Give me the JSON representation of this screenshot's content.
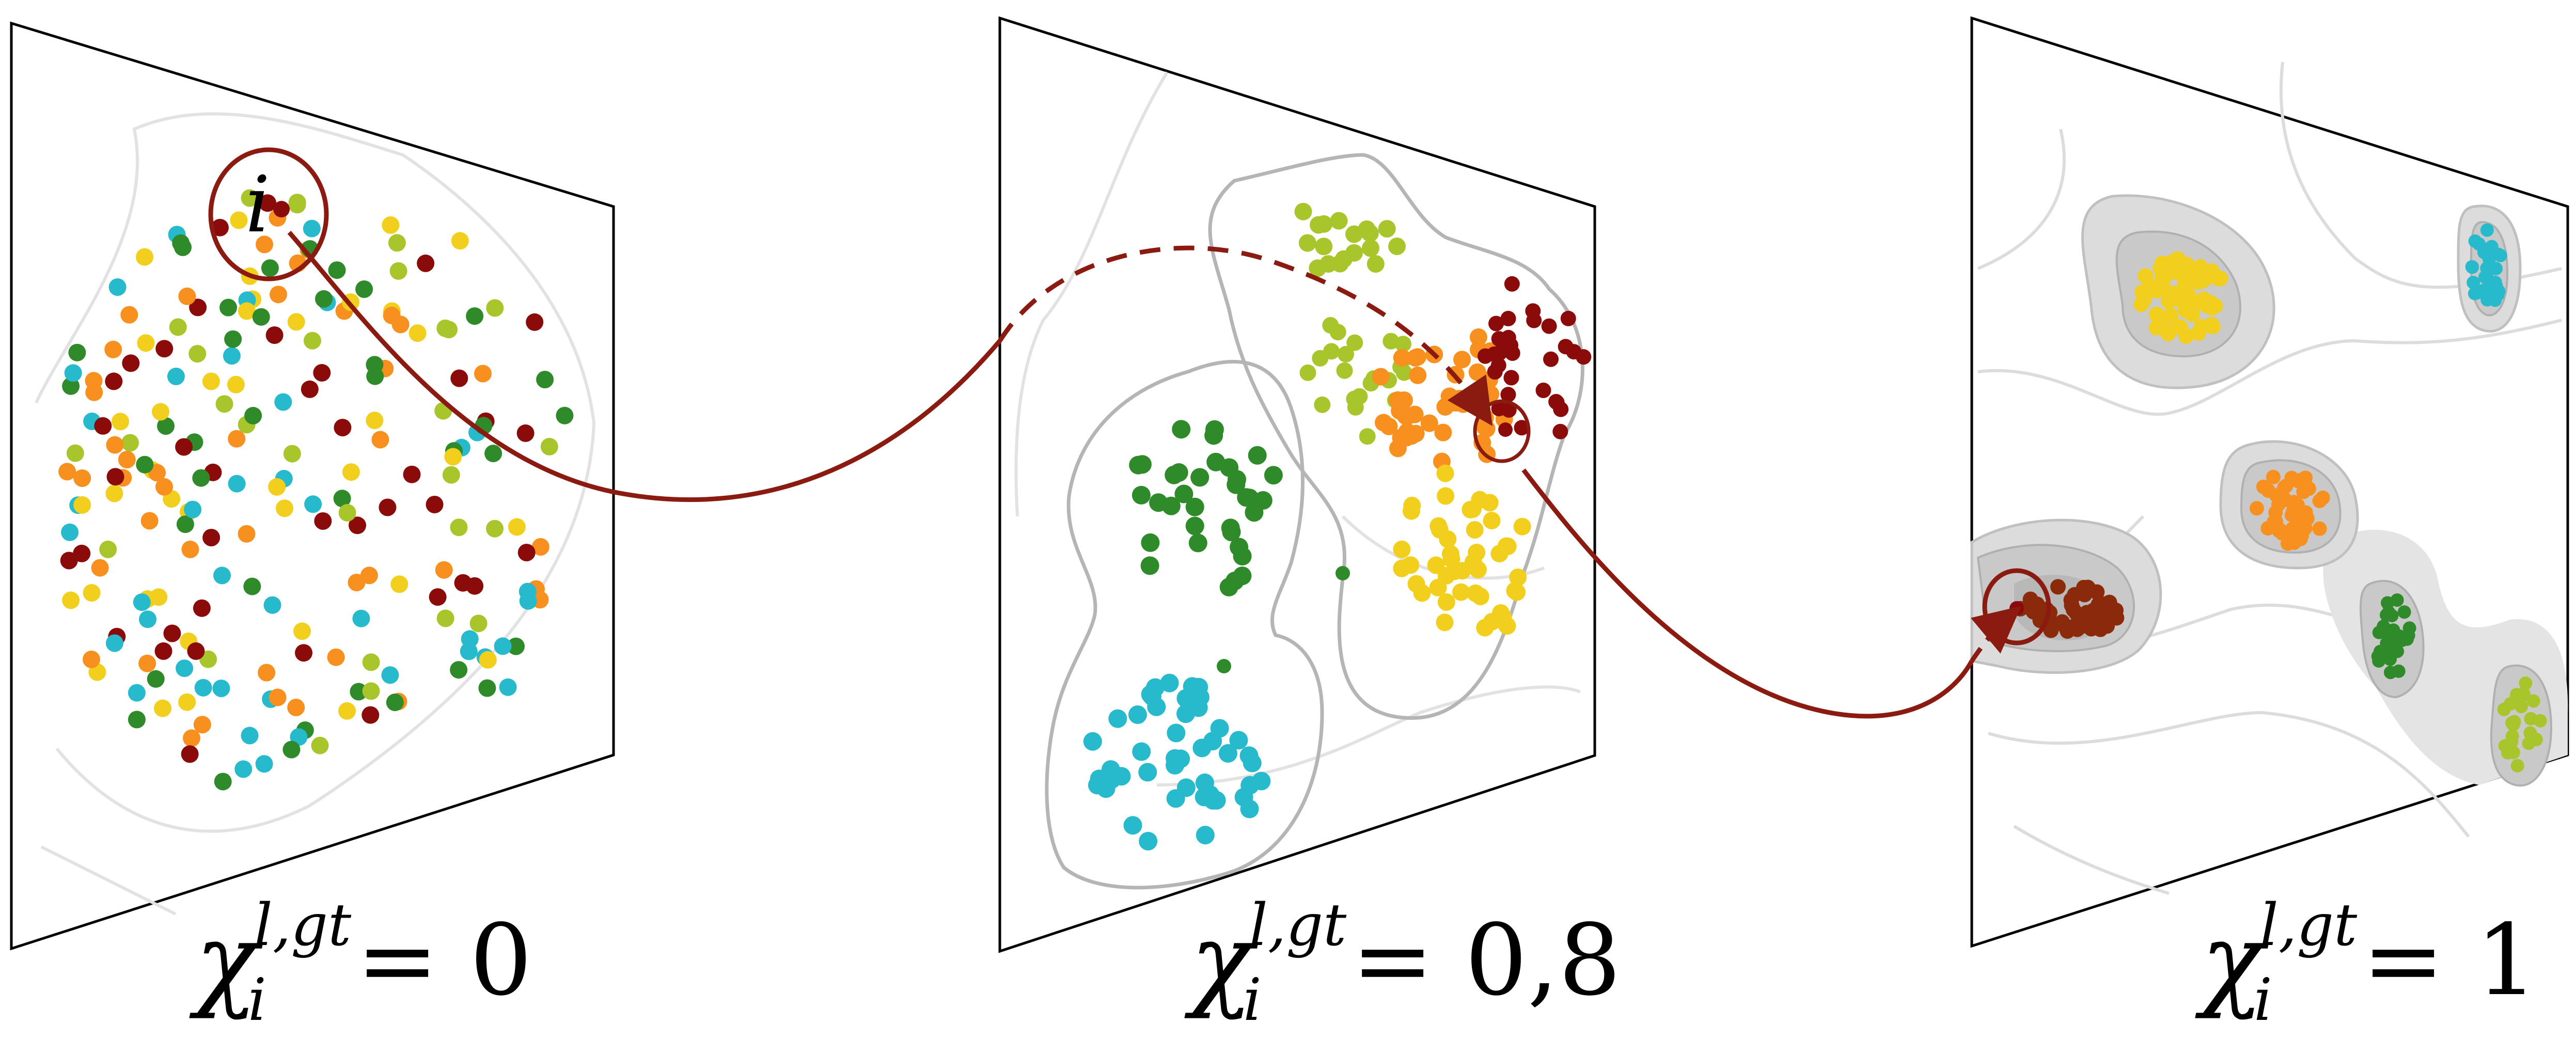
{
  "colors": {
    "dark_red": "#8b0a0a",
    "yellow": "#f2cf1d",
    "orange": "#f7901e",
    "dark_green": "#2f8a2a",
    "cyan": "#27b9cc",
    "yellow_green": "#a8c52c",
    "trajectory": "#8b1a10",
    "contour": "#c8c8c8",
    "panel_border": "#000000"
  },
  "panels": [
    {
      "id": "panel-left",
      "caption": {
        "symbol": "χ",
        "superscript": "l,gt",
        "subscript": "i",
        "equals": "= 0"
      }
    },
    {
      "id": "panel-middle",
      "caption": {
        "symbol": "χ",
        "superscript": "l,gt",
        "subscript": "i",
        "equals": "= 0,8"
      }
    },
    {
      "id": "panel-right",
      "caption": {
        "symbol": "χ",
        "superscript": "l,gt",
        "subscript": "i",
        "equals": "= 1"
      }
    }
  ],
  "highlighted_point_label": "i"
}
